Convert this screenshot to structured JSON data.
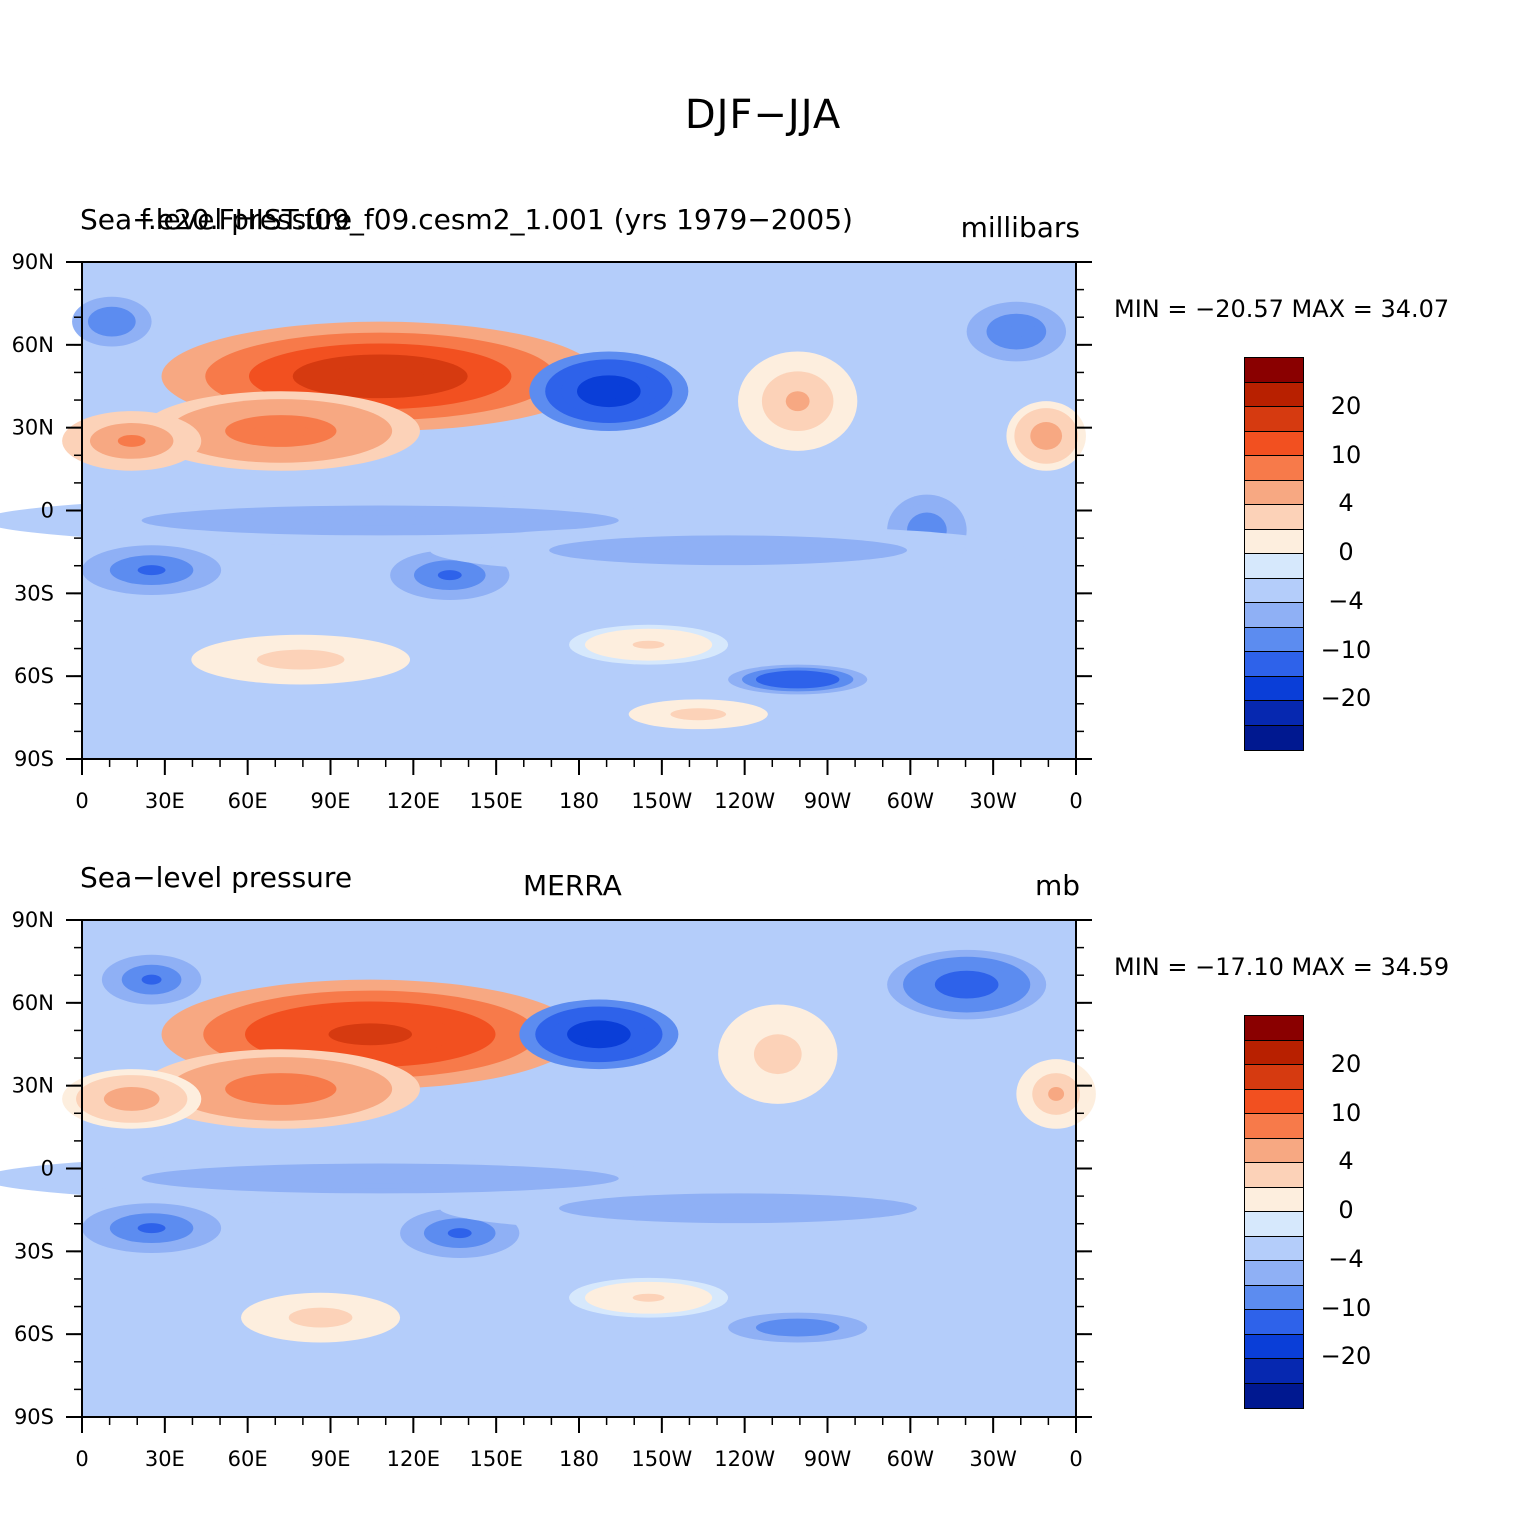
{
  "title": "DJF−JJA",
  "colorbar": {
    "colors": [
      "#8a0000",
      "#b82000",
      "#d63a10",
      "#f25020",
      "#f77a4a",
      "#f7a882",
      "#fcd2b8",
      "#fdeede",
      "#d6e8fc",
      "#b4cdfa",
      "#8fb0f5",
      "#5c8cf0",
      "#2e62ea",
      "#0a3ed8",
      "#0628b0",
      "#001890"
    ],
    "labels": [
      {
        "text": "20",
        "level": 20
      },
      {
        "text": "10",
        "level": 10
      },
      {
        "text": "4",
        "level": 4
      },
      {
        "text": "0",
        "level": 0
      },
      {
        "text": "−4",
        "level": -4
      },
      {
        "text": "−10",
        "level": -10
      },
      {
        "text": "−20",
        "level": -20
      }
    ]
  },
  "chart_data": [
    {
      "type": "heatmap",
      "title_left": "Sea−level pressure",
      "title_center": "f.e20.FHIST.f09_f09.cesm2_1.001 (yrs 1979−2005)",
      "units": "millibars",
      "min_max": "MIN = −20.57  MAX =   34.07",
      "y_ticks": [
        "90N",
        "60N",
        "30N",
        "0",
        "30S",
        "60S",
        "90S"
      ],
      "x_ticks": [
        "0",
        "30E",
        "60E",
        "90E",
        "120E",
        "150E",
        "180",
        "150W",
        "120W",
        "90W",
        "60W",
        "30W",
        "0"
      ],
      "contour_levels": [
        -30,
        -25,
        -20,
        -15,
        -10,
        -6,
        -4,
        -2,
        0,
        2,
        4,
        6,
        10,
        15,
        20,
        25,
        30
      ]
    },
    {
      "type": "heatmap",
      "title_left": "Sea−level pressure",
      "title_center": "MERRA",
      "units": "mb",
      "min_max": "MIN = −17.10  MAX =   34.59",
      "y_ticks": [
        "90N",
        "60N",
        "30N",
        "0",
        "30S",
        "60S",
        "90S"
      ],
      "x_ticks": [
        "0",
        "30E",
        "60E",
        "90E",
        "120E",
        "150E",
        "180",
        "150W",
        "120W",
        "90W",
        "60W",
        "30W",
        "0"
      ],
      "contour_levels": [
        -30,
        -25,
        -20,
        -15,
        -10,
        -6,
        -4,
        -2,
        0,
        2,
        4,
        6,
        10,
        15,
        20,
        25,
        30
      ]
    }
  ]
}
